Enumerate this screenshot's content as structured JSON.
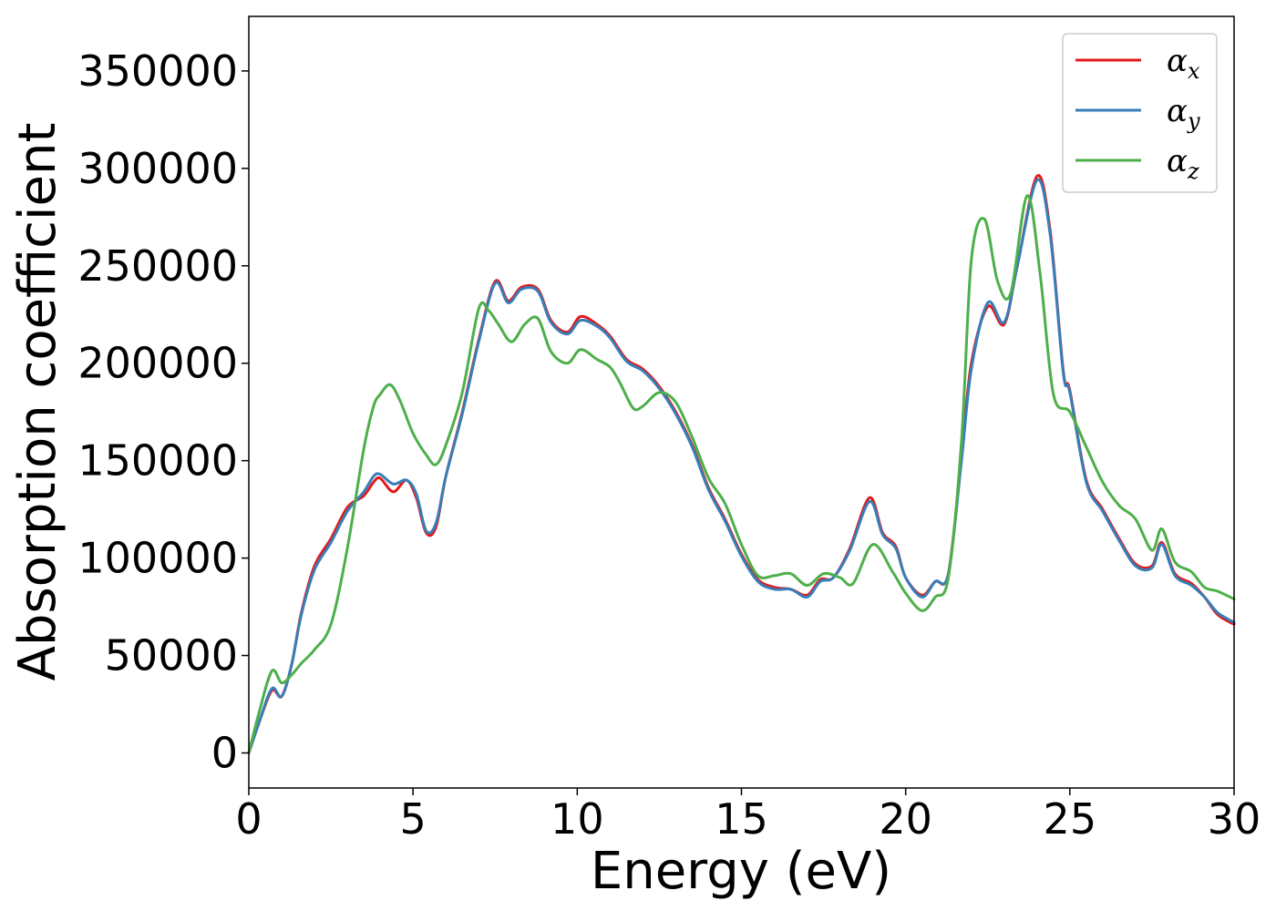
{
  "chart_data": {
    "type": "line",
    "title": "",
    "xlabel": "Energy (eV)",
    "ylabel": "Absorption coefficient",
    "xlim": [
      0,
      30
    ],
    "ylim": [
      -18000,
      378000
    ],
    "xticks": [
      "0",
      "5",
      "10",
      "15",
      "20",
      "25",
      "30"
    ],
    "yticks": [
      "0",
      "50000",
      "100000",
      "150000",
      "200000",
      "250000",
      "300000",
      "350000"
    ],
    "grid": false,
    "legend_position": "top-right",
    "series": [
      {
        "name": "α_x",
        "label_base": "α",
        "label_sub": "x",
        "color": "#e41a1c",
        "x": [
          0,
          0.3,
          0.7,
          1.0,
          1.3,
          1.6,
          2.0,
          2.5,
          3.0,
          3.5,
          3.8,
          4.0,
          4.4,
          4.8,
          5.1,
          5.4,
          5.7,
          6.0,
          6.5,
          7.0,
          7.5,
          7.9,
          8.3,
          8.8,
          9.2,
          9.7,
          10.1,
          10.6,
          11.0,
          11.5,
          12.0,
          12.5,
          13.0,
          13.5,
          14.0,
          14.5,
          15.0,
          15.5,
          16.0,
          16.5,
          17.0,
          17.4,
          17.8,
          18.3,
          18.9,
          19.3,
          19.7,
          20.0,
          20.5,
          20.9,
          21.3,
          21.7,
          22.0,
          22.5,
          23.0,
          23.4,
          24.0,
          24.4,
          24.8,
          25.0,
          25.5,
          26.0,
          26.5,
          27.0,
          27.5,
          27.8,
          28.2,
          28.7,
          29.1,
          29.5,
          30.0
        ],
        "y": [
          0,
          15000,
          32000,
          29000,
          45000,
          72000,
          96000,
          110000,
          126000,
          132000,
          139000,
          141000,
          134000,
          140000,
          131000,
          113000,
          116000,
          142000,
          175000,
          212000,
          242000,
          232000,
          239000,
          238000,
          222000,
          216000,
          224000,
          220000,
          214000,
          202000,
          197000,
          188000,
          175000,
          158000,
          136000,
          120000,
          102000,
          89000,
          85000,
          84000,
          81000,
          89000,
          90000,
          105000,
          131000,
          113000,
          106000,
          90000,
          81000,
          88000,
          92000,
          152000,
          200000,
          229000,
          220000,
          250000,
          296000,
          268000,
          196000,
          186000,
          140000,
          125000,
          110000,
          97000,
          96000,
          108000,
          92000,
          87000,
          80000,
          71000,
          66000
        ]
      },
      {
        "name": "α_y",
        "label_base": "α",
        "label_sub": "y",
        "color": "#377eb8",
        "x": [
          0,
          0.3,
          0.7,
          1.0,
          1.3,
          1.6,
          2.0,
          2.5,
          3.0,
          3.5,
          3.8,
          4.0,
          4.4,
          4.8,
          5.1,
          5.4,
          5.7,
          6.0,
          6.5,
          7.0,
          7.5,
          7.9,
          8.3,
          8.8,
          9.2,
          9.7,
          10.1,
          10.6,
          11.0,
          11.5,
          12.0,
          12.5,
          13.0,
          13.5,
          14.0,
          14.5,
          15.0,
          15.5,
          16.0,
          16.5,
          17.0,
          17.4,
          17.8,
          18.3,
          18.9,
          19.3,
          19.7,
          20.0,
          20.5,
          20.9,
          21.3,
          21.7,
          22.0,
          22.5,
          23.0,
          23.4,
          24.0,
          24.4,
          24.8,
          25.0,
          25.5,
          26.0,
          26.5,
          27.0,
          27.5,
          27.8,
          28.2,
          28.7,
          29.1,
          29.5,
          30.0
        ],
        "y": [
          0,
          15000,
          33000,
          29000,
          45000,
          71000,
          94000,
          108000,
          124000,
          134000,
          142000,
          143000,
          138000,
          140000,
          133000,
          114000,
          118000,
          142000,
          174000,
          211000,
          241000,
          231000,
          238000,
          237000,
          221000,
          215000,
          222000,
          219000,
          213000,
          201000,
          196000,
          187000,
          174000,
          157000,
          135000,
          119000,
          101000,
          88000,
          84000,
          84000,
          80000,
          88000,
          90000,
          104000,
          129000,
          112000,
          105000,
          90000,
          80000,
          88000,
          92000,
          150000,
          197000,
          231000,
          221000,
          250000,
          294000,
          266000,
          195000,
          185000,
          139000,
          124000,
          109000,
          96000,
          95000,
          107000,
          91000,
          86000,
          80000,
          72000,
          67000
        ]
      },
      {
        "name": "α_z",
        "label_base": "α",
        "label_sub": "z",
        "color": "#4daf4a",
        "x": [
          0,
          0.3,
          0.7,
          1.0,
          1.3,
          1.6,
          2.0,
          2.5,
          3.0,
          3.5,
          3.8,
          4.0,
          4.3,
          4.6,
          5.0,
          5.4,
          5.7,
          6.0,
          6.5,
          7.0,
          7.3,
          7.6,
          8.0,
          8.4,
          8.8,
          9.2,
          9.7,
          10.1,
          10.6,
          11.0,
          11.3,
          11.7,
          12.0,
          12.5,
          13.0,
          13.5,
          14.0,
          14.5,
          15.0,
          15.5,
          16.0,
          16.5,
          17.0,
          17.5,
          18.0,
          18.4,
          19.0,
          19.6,
          20.0,
          20.5,
          20.9,
          21.3,
          21.7,
          22.0,
          22.4,
          22.8,
          23.2,
          23.7,
          24.1,
          24.5,
          25.0,
          25.5,
          26.0,
          26.5,
          27.0,
          27.5,
          27.8,
          28.2,
          28.7,
          29.1,
          29.5,
          30.0
        ],
        "y": [
          0,
          20000,
          42000,
          36000,
          40000,
          46000,
          53000,
          66000,
          105000,
          156000,
          178000,
          184000,
          189000,
          181000,
          164000,
          153000,
          148000,
          158000,
          185000,
          228000,
          227000,
          220000,
          211000,
          220000,
          223000,
          206000,
          200000,
          207000,
          202000,
          198000,
          190000,
          177000,
          178000,
          185000,
          180000,
          162000,
          141000,
          128000,
          107000,
          91000,
          91000,
          92000,
          86000,
          92000,
          90000,
          87000,
          107000,
          93000,
          82000,
          73000,
          80000,
          90000,
          160000,
          253000,
          274000,
          242000,
          236000,
          286000,
          245000,
          184000,
          175000,
          157000,
          139000,
          127000,
          120000,
          104000,
          115000,
          98000,
          93000,
          85000,
          83000,
          79000
        ]
      }
    ]
  }
}
